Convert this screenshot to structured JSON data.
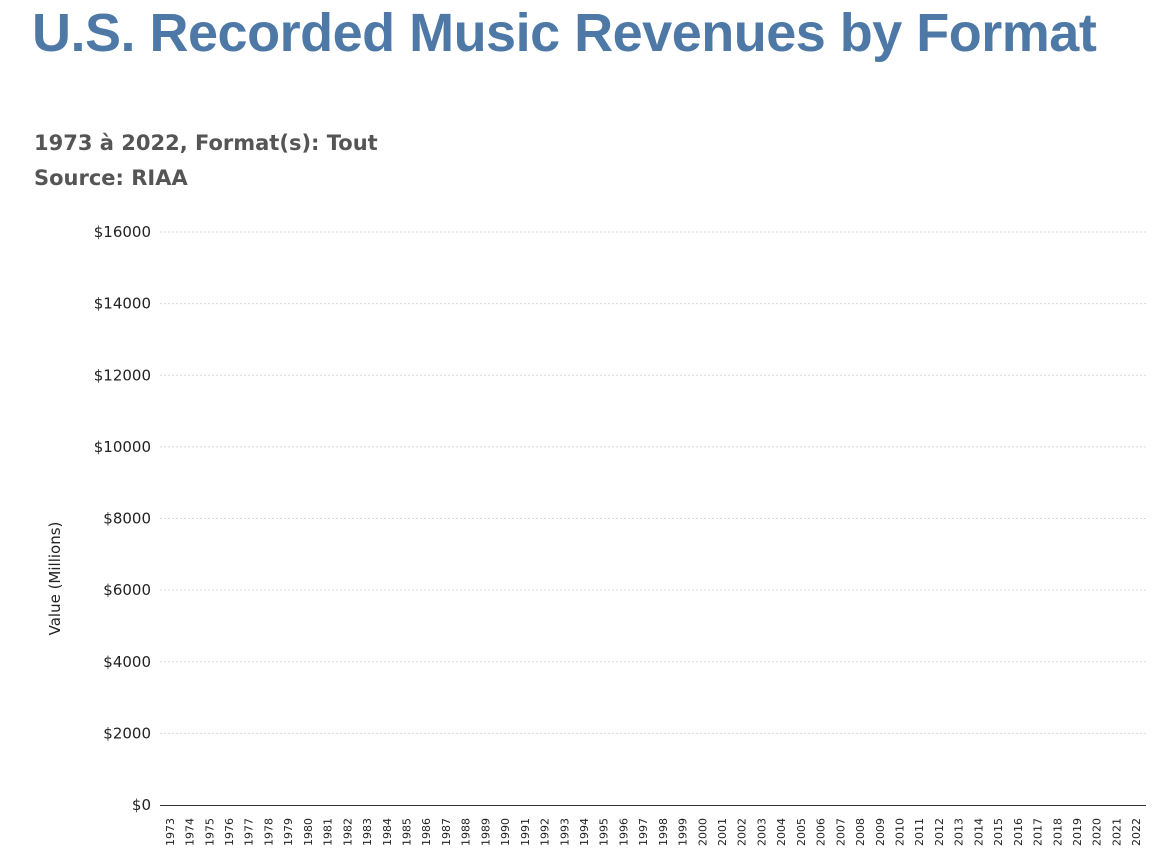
{
  "header": {
    "title": "U.S. Recorded Music Revenues by Format",
    "subtitle": "1973 à 2022, Format(s): Tout",
    "source": "Source: RIAA"
  },
  "chart_data": {
    "type": "bar",
    "stacked": true,
    "ylabel": "Value (Millions)",
    "xlabel": "",
    "ylim": [
      0,
      16000
    ],
    "yticks": [
      0,
      2000,
      4000,
      6000,
      8000,
      10000,
      12000,
      14000,
      16000
    ],
    "ytick_labels": [
      "$0",
      "$2000",
      "$4000",
      "$6000",
      "$8000",
      "$10000",
      "$12000",
      "$14000",
      "$16000"
    ],
    "grid": true,
    "categories": [
      "1973",
      "1974",
      "1975",
      "1976",
      "1977",
      "1978",
      "1979",
      "1980",
      "1981",
      "1982",
      "1983",
      "1984",
      "1985",
      "1986",
      "1987",
      "1988",
      "1989",
      "1990",
      "1991",
      "1992",
      "1993",
      "1994",
      "1995",
      "1996",
      "1997",
      "1998",
      "1999",
      "2000",
      "2001",
      "2002",
      "2003",
      "2004",
      "2005",
      "2006",
      "2007",
      "2008",
      "2009",
      "2010",
      "2011",
      "2012",
      "2013",
      "2014",
      "2015",
      "2016",
      "2017",
      "2018",
      "2019",
      "2020",
      "2021",
      "2022"
    ],
    "series": [
      {
        "color": "#c2b8b0",
        "values": [
          0,
          0,
          0,
          0,
          0,
          0,
          0,
          0,
          0,
          0,
          0,
          0,
          0,
          0,
          0,
          0,
          0,
          0,
          0,
          0,
          0,
          0,
          0,
          0,
          0,
          0,
          0,
          0,
          0,
          0,
          0,
          0,
          0,
          0,
          0,
          0,
          0,
          0,
          0,
          0,
          0,
          0,
          0,
          0,
          0,
          0,
          0,
          0,
          0,
          0
        ]
      },
      {
        "color": "#f7d766",
        "values": [
          0,
          0,
          0,
          0,
          0,
          0,
          0,
          0,
          0,
          0,
          0,
          0,
          0,
          0,
          0,
          0,
          0,
          0,
          0,
          0,
          0,
          0,
          0,
          0,
          0,
          0,
          0,
          0,
          0,
          0,
          0,
          0,
          0,
          0,
          0,
          0,
          0,
          0,
          0,
          0,
          0,
          0,
          0,
          0,
          0,
          0,
          0,
          0,
          0,
          0
        ]
      },
      {
        "color": "#bcd9ef",
        "values": [
          0,
          0,
          0,
          0,
          0,
          0,
          0,
          0,
          0,
          0,
          0,
          0,
          0,
          0,
          0,
          0,
          0,
          0,
          0,
          0,
          0,
          0,
          0,
          0,
          0,
          0,
          0,
          0,
          0,
          0,
          0,
          0,
          0,
          0,
          0,
          0,
          0,
          0,
          0,
          0,
          0,
          0,
          0,
          0,
          0,
          0,
          0,
          0,
          0,
          0
        ]
      },
      {
        "color": "#7bacd3",
        "values": [
          0,
          0,
          0,
          0,
          0,
          0,
          0,
          0,
          0,
          0,
          0,
          0,
          0,
          0,
          0,
          0,
          0,
          0,
          0,
          0,
          0,
          0,
          0,
          0,
          0,
          0,
          0,
          0,
          0,
          0,
          0,
          0,
          0,
          0,
          0,
          0,
          0,
          0,
          0,
          0,
          0,
          0,
          0,
          0,
          0,
          0,
          0,
          0,
          0,
          0
        ]
      }
    ]
  }
}
